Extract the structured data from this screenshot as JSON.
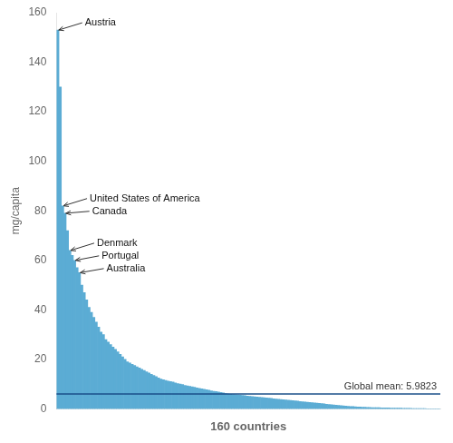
{
  "chart_data": {
    "type": "bar",
    "xlabel": "160 countries",
    "ylabel": "mg/capita",
    "values": [
      153,
      130,
      82,
      79,
      72,
      64,
      62,
      60,
      57,
      55,
      50,
      47,
      44,
      41,
      39,
      37,
      35,
      33,
      31,
      30,
      28,
      27,
      26,
      25,
      24,
      23,
      22,
      21,
      20,
      19,
      18.5,
      18,
      17.5,
      17,
      16.5,
      16,
      15.5,
      15,
      14.5,
      14,
      13.5,
      13,
      12.5,
      12,
      11.8,
      11.5,
      11.2,
      11,
      10.8,
      10.5,
      10.2,
      10,
      9.8,
      9.5,
      9.3,
      9.1,
      8.9,
      8.7,
      8.5,
      8.3,
      8.1,
      7.9,
      7.7,
      7.5,
      7.3,
      7.1,
      7.0,
      6.8,
      6.6,
      6.4,
      6.2,
      6.0,
      5.9,
      5.8,
      5.7,
      5.6,
      5.5,
      5.4,
      5.3,
      5.2,
      5.1,
      5.0,
      4.9,
      4.8,
      4.7,
      4.6,
      4.5,
      4.4,
      4.3,
      4.2,
      4.1,
      4.0,
      3.9,
      3.8,
      3.7,
      3.6,
      3.5,
      3.4,
      3.3,
      3.2,
      3.1,
      3.0,
      2.9,
      2.8,
      2.7,
      2.6,
      2.5,
      2.4,
      2.3,
      2.2,
      2.1,
      2.0,
      1.9,
      1.8,
      1.7,
      1.6,
      1.5,
      1.4,
      1.3,
      1.2,
      1.1,
      1.0,
      0.95,
      0.9,
      0.85,
      0.8,
      0.75,
      0.7,
      0.65,
      0.6,
      0.55,
      0.5,
      0.48,
      0.46,
      0.44,
      0.42,
      0.4,
      0.38,
      0.36,
      0.34,
      0.32,
      0.3,
      0.28,
      0.26,
      0.24,
      0.22,
      0.2,
      0.18,
      0.16,
      0.14,
      0.12,
      0.1,
      0.09,
      0.08,
      0.07,
      0.06,
      0.05,
      0.04,
      0.03,
      0.02
    ],
    "color": "#5bacd4",
    "ylim": [
      0,
      160
    ],
    "yticks": [
      0,
      20,
      40,
      60,
      80,
      100,
      120,
      140,
      160
    ],
    "grid": false,
    "tick_labels": "y",
    "mean_line": {
      "value": 5.9823,
      "label": "Global mean: 5.9823",
      "color": "#1a4f8a"
    },
    "annotations": [
      {
        "text": "Austria",
        "index": 0,
        "value": 153
      },
      {
        "text": "United States of America",
        "index": 2,
        "value": 82
      },
      {
        "text": "Canada",
        "index": 3,
        "value": 79
      },
      {
        "text": "Denmark",
        "index": 5,
        "value": 64
      },
      {
        "text": "Portugal",
        "index": 7,
        "value": 60
      },
      {
        "text": "Australia",
        "index": 9,
        "value": 55
      }
    ]
  }
}
